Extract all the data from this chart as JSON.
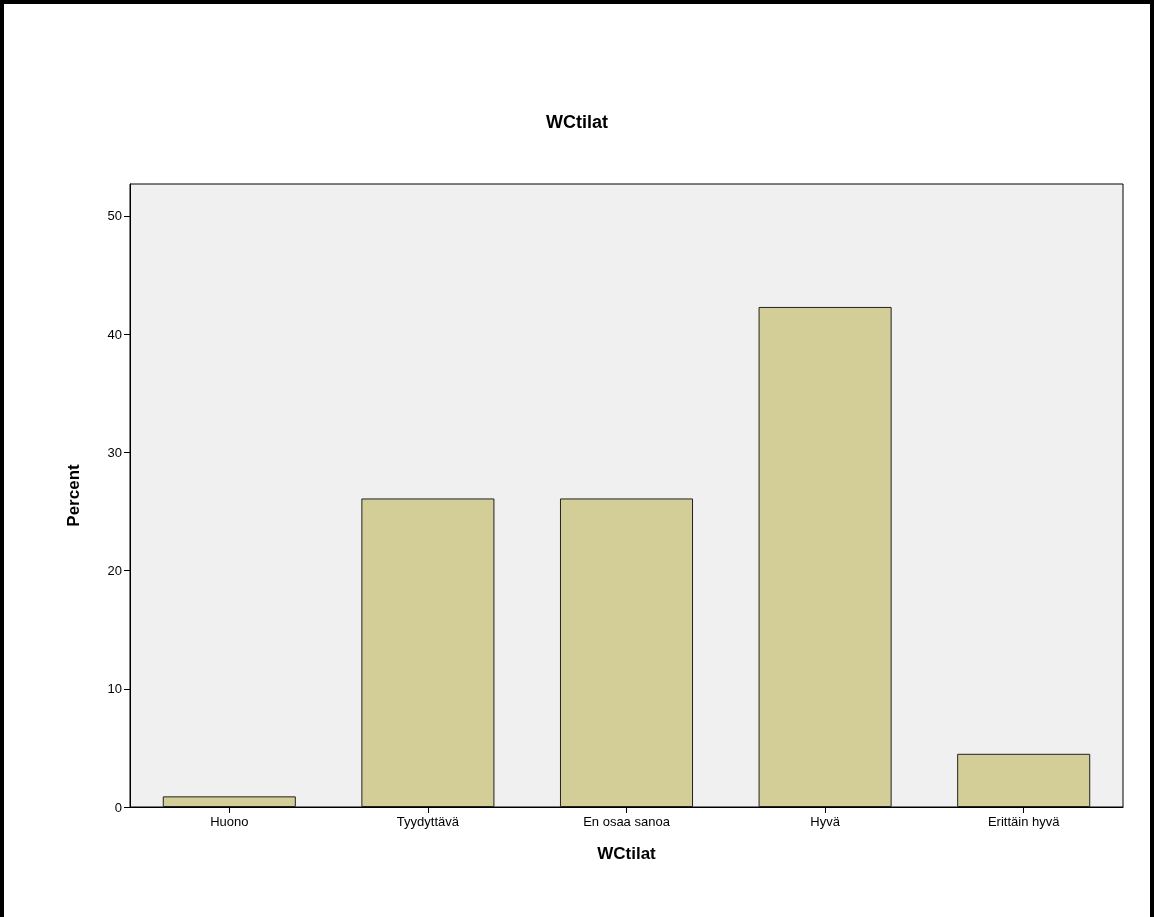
{
  "chart_data": {
    "type": "bar",
    "title": "WCtilat",
    "xlabel": "WCtilat",
    "ylabel": "Percent",
    "categories": [
      "Huono",
      "Tyydyttävä",
      "En osaa sanoa",
      "Hyvä",
      "Erittäin hyvä"
    ],
    "values": [
      0.9,
      26.1,
      26.1,
      42.3,
      4.5
    ],
    "color": "#d3ce97",
    "ylim": [
      0,
      52.7
    ],
    "yticks": [
      0,
      10,
      20,
      30,
      40,
      50
    ],
    "grid": false
  }
}
